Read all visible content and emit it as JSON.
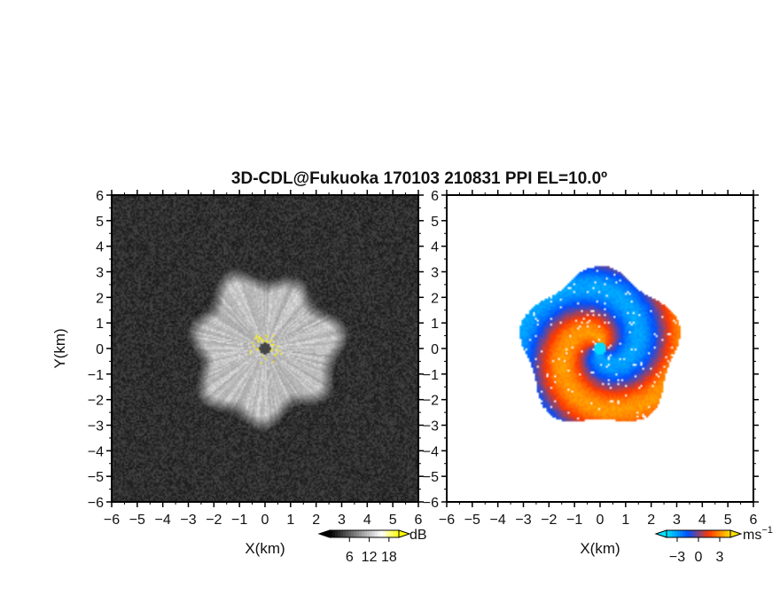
{
  "title": "3D-CDL@Fukuoka 170103 210831 PPI EL=10.0º",
  "chart_data": [
    {
      "type": "heatmap",
      "quantity": "signal-to-noise ratio",
      "xlabel": "X(km)",
      "ylabel": "Y(km)",
      "xlim": [
        -6,
        6
      ],
      "ylim": [
        -6,
        6
      ],
      "xticks": [
        "−6",
        "−5",
        "−4",
        "−3",
        "−2",
        "−1",
        "0",
        "1",
        "2",
        "3",
        "4",
        "5",
        "6"
      ],
      "yticks": [
        "−6",
        "−5",
        "−4",
        "−3",
        "−2",
        "−1",
        "0",
        "1",
        "2",
        "3",
        "4",
        "5",
        "6"
      ],
      "echo_radius_km": 3,
      "colormap": [
        "#000000",
        "#555555",
        "#aaaaaa",
        "#ffffff",
        "#ffff00"
      ],
      "colorbar": {
        "unit": "dB",
        "ticks": [
          "6",
          "12",
          "18"
        ],
        "tick_values": [
          6,
          12,
          18
        ],
        "range": [
          0,
          21
        ]
      }
    },
    {
      "type": "heatmap",
      "quantity": "radial velocity",
      "xlabel": "X(km)",
      "ylabel": "",
      "xlim": [
        -6,
        6
      ],
      "ylim": [
        -6,
        6
      ],
      "xticks": [
        "−6",
        "−5",
        "−4",
        "−3",
        "−2",
        "−1",
        "0",
        "1",
        "2",
        "3",
        "4",
        "5",
        "6"
      ],
      "yticks": [
        "−6",
        "−5",
        "−4",
        "−3",
        "−2",
        "−1",
        "0",
        "1",
        "2",
        "3",
        "4",
        "5",
        "6"
      ],
      "echo_radius_km": 3,
      "colormap": [
        "#00e5ff",
        "#0050ff",
        "#ff3a00",
        "#ffe000"
      ],
      "colorbar": {
        "unit": "ms",
        "unit_superscript": "−1",
        "ticks": [
          "−3",
          "0",
          "3"
        ],
        "tick_values": [
          -3,
          0,
          3
        ],
        "range": [
          -4.5,
          4.5
        ]
      }
    }
  ]
}
